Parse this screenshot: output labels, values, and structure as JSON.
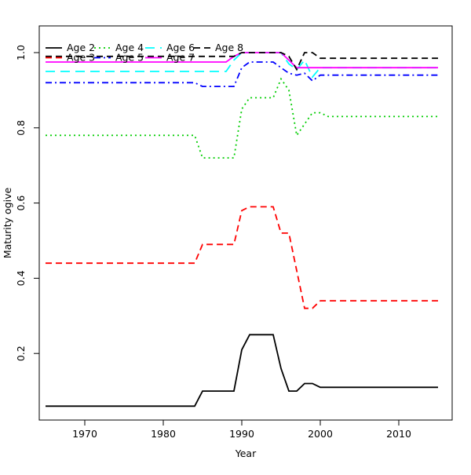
{
  "background": "#FFFFFF",
  "chart_data": {
    "type": "line",
    "title": "",
    "xlabel": "Year",
    "ylabel": "Maturity ogive",
    "x_ticks": [
      1970,
      1980,
      1990,
      2000,
      2010
    ],
    "y_ticks": [
      "0.2",
      "0.4",
      "0.6",
      "0.8",
      "1.0"
    ],
    "xlim": [
      1964.2,
      2016.8
    ],
    "ylim": [
      0.02,
      1.07
    ],
    "grid": false,
    "legend_position": "top-left",
    "legend_rows": [
      [
        "Age 2",
        "Age 4",
        "Age 6",
        "Age 8"
      ],
      [
        "Age 3",
        "Age 5",
        "Age 7"
      ]
    ],
    "x": [
      1965,
      1966,
      1967,
      1968,
      1969,
      1970,
      1971,
      1972,
      1973,
      1974,
      1975,
      1976,
      1977,
      1978,
      1979,
      1980,
      1981,
      1982,
      1983,
      1984,
      1985,
      1986,
      1987,
      1988,
      1989,
      1990,
      1991,
      1992,
      1993,
      1994,
      1995,
      1996,
      1997,
      1998,
      1999,
      2000,
      2001,
      2002,
      2003,
      2004,
      2005,
      2006,
      2007,
      2008,
      2009,
      2010,
      2011,
      2012,
      2013,
      2014,
      2015
    ],
    "series": [
      {
        "name": "Age 2",
        "color": "#000000",
        "dash": "solid",
        "values": [
          0.06,
          0.06,
          0.06,
          0.06,
          0.06,
          0.06,
          0.06,
          0.06,
          0.06,
          0.06,
          0.06,
          0.06,
          0.06,
          0.06,
          0.06,
          0.06,
          0.06,
          0.06,
          0.06,
          0.06,
          0.1,
          0.1,
          0.1,
          0.1,
          0.1,
          0.21,
          0.25,
          0.25,
          0.25,
          0.25,
          0.16,
          0.1,
          0.1,
          0.12,
          0.12,
          0.11,
          0.11,
          0.11,
          0.11,
          0.11,
          0.11,
          0.11,
          0.11,
          0.11,
          0.11,
          0.11,
          0.11,
          0.11,
          0.11,
          0.11,
          0.11
        ]
      },
      {
        "name": "Age 3",
        "color": "#FF0000",
        "dash": "dashed",
        "values": [
          0.44,
          0.44,
          0.44,
          0.44,
          0.44,
          0.44,
          0.44,
          0.44,
          0.44,
          0.44,
          0.44,
          0.44,
          0.44,
          0.44,
          0.44,
          0.44,
          0.44,
          0.44,
          0.44,
          0.44,
          0.49,
          0.49,
          0.49,
          0.49,
          0.49,
          0.58,
          0.59,
          0.59,
          0.59,
          0.59,
          0.52,
          0.52,
          0.42,
          0.32,
          0.32,
          0.34,
          0.34,
          0.34,
          0.34,
          0.34,
          0.34,
          0.34,
          0.34,
          0.34,
          0.34,
          0.34,
          0.34,
          0.34,
          0.34,
          0.34,
          0.34
        ]
      },
      {
        "name": "Age 4",
        "color": "#00CD00",
        "dash": "dotted",
        "values": [
          0.78,
          0.78,
          0.78,
          0.78,
          0.78,
          0.78,
          0.78,
          0.78,
          0.78,
          0.78,
          0.78,
          0.78,
          0.78,
          0.78,
          0.78,
          0.78,
          0.78,
          0.78,
          0.78,
          0.78,
          0.72,
          0.72,
          0.72,
          0.72,
          0.72,
          0.85,
          0.88,
          0.88,
          0.88,
          0.88,
          0.93,
          0.9,
          0.78,
          0.81,
          0.84,
          0.84,
          0.83,
          0.83,
          0.83,
          0.83,
          0.83,
          0.83,
          0.83,
          0.83,
          0.83,
          0.83,
          0.83,
          0.83,
          0.83,
          0.83,
          0.83
        ]
      },
      {
        "name": "Age 5",
        "color": "#0000FF",
        "dash": "dotdash",
        "values": [
          0.92,
          0.92,
          0.92,
          0.92,
          0.92,
          0.92,
          0.92,
          0.92,
          0.92,
          0.92,
          0.92,
          0.92,
          0.92,
          0.92,
          0.92,
          0.92,
          0.92,
          0.92,
          0.92,
          0.92,
          0.91,
          0.91,
          0.91,
          0.91,
          0.91,
          0.96,
          0.975,
          0.975,
          0.975,
          0.975,
          0.96,
          0.945,
          0.94,
          0.945,
          0.925,
          0.94,
          0.94,
          0.94,
          0.94,
          0.94,
          0.94,
          0.94,
          0.94,
          0.94,
          0.94,
          0.94,
          0.94,
          0.94,
          0.94,
          0.94,
          0.94
        ]
      },
      {
        "name": "Age 6",
        "color": "#00FFFF",
        "dash": "longdash",
        "values": [
          0.95,
          0.95,
          0.95,
          0.95,
          0.95,
          0.95,
          0.95,
          0.95,
          0.95,
          0.95,
          0.95,
          0.95,
          0.95,
          0.95,
          0.95,
          0.95,
          0.95,
          0.95,
          0.95,
          0.95,
          0.95,
          0.95,
          0.95,
          0.95,
          0.98,
          1.0,
          1.0,
          1.0,
          1.0,
          1.0,
          1.0,
          0.97,
          0.955,
          0.98,
          0.935,
          0.96,
          0.96,
          0.96,
          0.96,
          0.96,
          0.96,
          0.96,
          0.96,
          0.96,
          0.96,
          0.96,
          0.96,
          0.96,
          0.96,
          0.96,
          0.96
        ]
      },
      {
        "name": "Age 7",
        "color": "#FF00FF",
        "dash": "solid",
        "values": [
          0.975,
          0.975,
          0.975,
          0.975,
          0.975,
          0.975,
          0.975,
          0.975,
          0.975,
          0.975,
          0.975,
          0.975,
          0.975,
          0.975,
          0.975,
          0.975,
          0.975,
          0.975,
          0.975,
          0.975,
          0.975,
          0.975,
          0.975,
          0.975,
          0.99,
          1.0,
          1.0,
          1.0,
          1.0,
          1.0,
          1.0,
          0.98,
          0.96,
          0.96,
          0.96,
          0.96,
          0.96,
          0.96,
          0.96,
          0.96,
          0.96,
          0.96,
          0.96,
          0.96,
          0.96,
          0.96,
          0.96,
          0.96,
          0.96,
          0.96,
          0.96
        ]
      },
      {
        "name": "Age 8",
        "color": "#000000",
        "dash": "dashed",
        "values": [
          0.99,
          0.99,
          0.99,
          0.99,
          0.99,
          0.99,
          0.99,
          0.99,
          0.99,
          0.99,
          0.99,
          0.99,
          0.99,
          0.99,
          0.99,
          0.99,
          0.99,
          0.99,
          0.99,
          0.99,
          0.99,
          0.99,
          0.99,
          0.99,
          0.99,
          1.0,
          1.0,
          1.0,
          1.0,
          1.0,
          1.0,
          0.99,
          0.955,
          1.0,
          1.0,
          0.985,
          0.985,
          0.985,
          0.985,
          0.985,
          0.985,
          0.985,
          0.985,
          0.985,
          0.985,
          0.985,
          0.985,
          0.985,
          0.985,
          0.985,
          0.985
        ]
      }
    ]
  }
}
